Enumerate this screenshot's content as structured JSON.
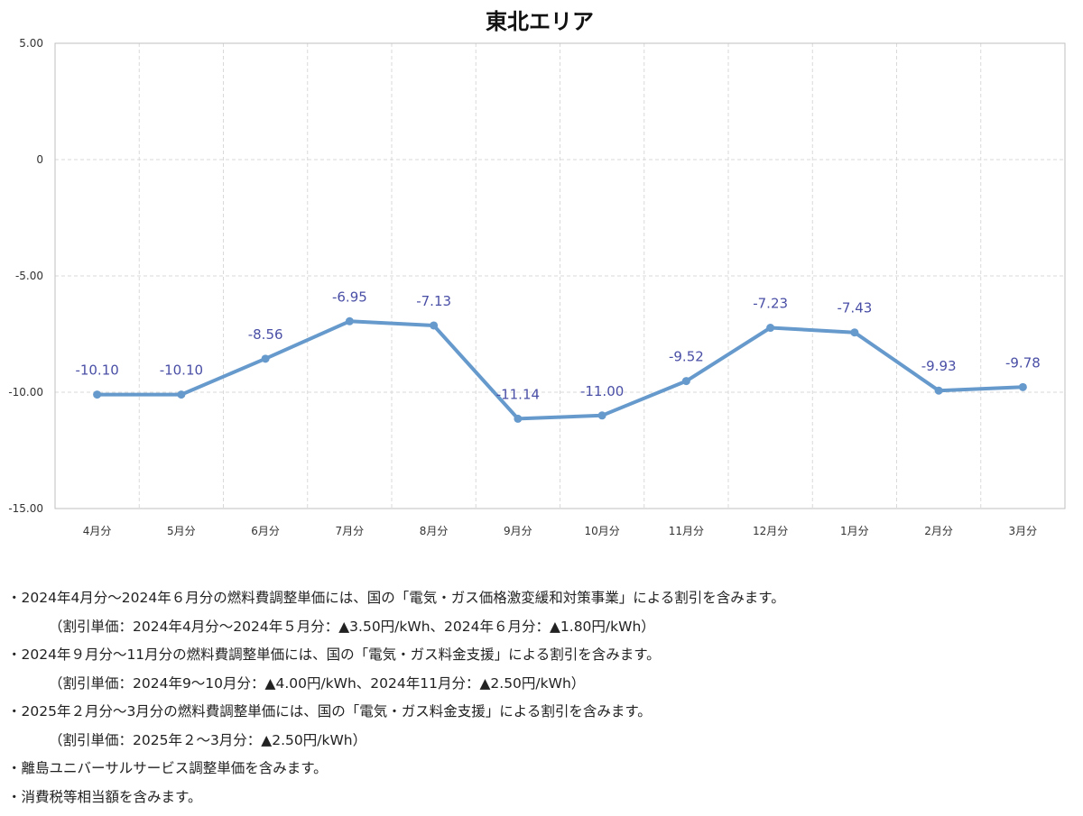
{
  "chart_data": {
    "type": "line",
    "title": "東北エリア",
    "categories": [
      "4月分",
      "5月分",
      "6月分",
      "7月分",
      "8月分",
      "9月分",
      "10月分",
      "11月分",
      "12月分",
      "1月分",
      "2月分",
      "3月分"
    ],
    "series": [
      {
        "values": [
          -10.1,
          -10.1,
          -8.56,
          -6.95,
          -7.13,
          -11.14,
          -11.0,
          -9.52,
          -7.23,
          -7.43,
          -9.93,
          -9.78
        ],
        "labels": [
          "-10.10",
          "-10.10",
          "-8.56",
          "-6.95",
          "-7.13",
          "-11.14",
          "-11.00",
          "-9.52",
          "-7.23",
          "-7.43",
          "-9.93",
          "-9.78"
        ]
      }
    ],
    "ylim": [
      -15,
      5
    ],
    "yticks": [
      5,
      0,
      -5,
      -10,
      -15
    ],
    "ytick_labels": [
      "5.00",
      "0",
      "-5.00",
      "-10.00",
      "-15.00"
    ],
    "grid": true,
    "line_color": "#6699cc",
    "label_color": "#4a4fa6"
  },
  "notes": [
    "・2024年4月分～2024年６月分の燃料費調整単価には、国の「電気・ガス価格激変緩和対策事業」による割引を含みます。",
    "（割引単価：2024年4月分～2024年５月分：▲3.50円/kWh、2024年６月分：▲1.80円/kWh）",
    "・2024年９月分～11月分の燃料費調整単価には、国の「電気・ガス料金支援」による割引を含みます。",
    "（割引単価：2024年9～10月分：▲4.00円/kWh、2024年11月分：▲2.50円/kWh）",
    "・2025年２月分～3月分の燃料費調整単価には、国の「電気・ガス料金支援」による割引を含みます。",
    "（割引単価：2025年２～3月分：▲2.50円/kWh）",
    "・離島ユニバーサルサービス調整単価を含みます。",
    "・消費税等相当額を含みます。"
  ]
}
